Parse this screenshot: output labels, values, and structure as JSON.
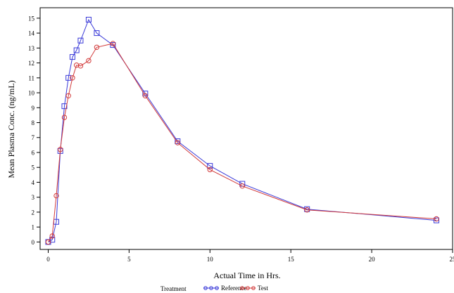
{
  "chart_data": {
    "type": "line",
    "title": "",
    "xlabel": "Actual Time in Hrs.",
    "ylabel": "Mean Plasma Conc. (ng/mL)",
    "xlim": [
      -0.5,
      25
    ],
    "ylim": [
      -0.5,
      15.7
    ],
    "xticks": [
      "0",
      "5",
      "10",
      "15",
      "20",
      "25"
    ],
    "yticks": [
      "0",
      "1",
      "2",
      "3",
      "4",
      "5",
      "6",
      "7",
      "8",
      "9",
      "10",
      "11",
      "12",
      "13",
      "14",
      "15"
    ],
    "grid": false,
    "legend_title": "Treatment",
    "legend_position": "bottom",
    "series": [
      {
        "name": "Reference",
        "color": "#3a3ad8",
        "marker": "square",
        "x": [
          0,
          0.25,
          0.5,
          0.75,
          1,
          1.25,
          1.5,
          1.75,
          2,
          2.5,
          3,
          4,
          6,
          8,
          10,
          12,
          16,
          24
        ],
        "y": [
          0,
          0.15,
          1.35,
          6.1,
          9.1,
          11.0,
          12.4,
          12.85,
          13.5,
          14.9,
          14.0,
          13.2,
          9.95,
          6.75,
          5.1,
          3.9,
          2.2,
          1.45
        ]
      },
      {
        "name": "Test",
        "color": "#d23b3b",
        "marker": "circle",
        "x": [
          0,
          0.25,
          0.5,
          0.75,
          1,
          1.25,
          1.5,
          1.75,
          2,
          2.5,
          3,
          4,
          6,
          8,
          10,
          12,
          16,
          24
        ],
        "y": [
          0,
          0.4,
          3.1,
          6.2,
          8.35,
          9.8,
          11.0,
          11.85,
          11.8,
          12.15,
          13.05,
          13.3,
          9.8,
          6.65,
          4.85,
          3.75,
          2.15,
          1.55
        ]
      }
    ]
  }
}
